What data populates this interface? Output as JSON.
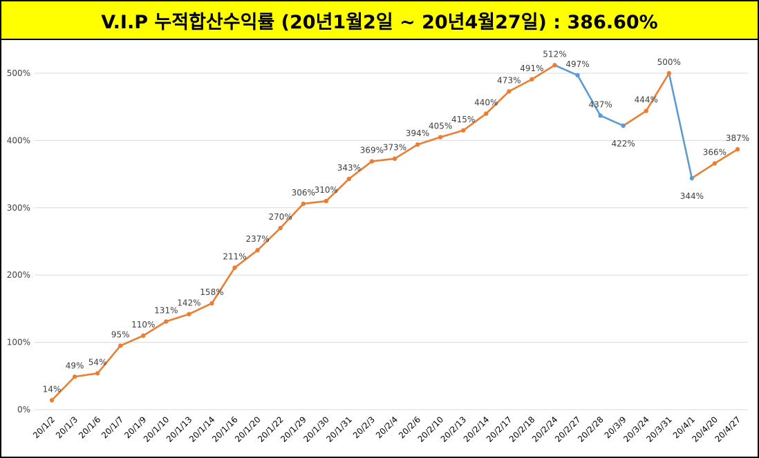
{
  "title": "V.I.P 누적합산수익률 (20년1월2일 ~ 20년4월27일) : 386.60%",
  "colors": {
    "title_background": "#ffff00",
    "line_up": "#ed7d31",
    "line_down": "#5b9bd5",
    "grid": "#d9d9d9"
  },
  "chart_data": {
    "type": "line",
    "title": "V.I.P 누적합산수익률 (20년1월2일 ~ 20년4월27일) : 386.60%",
    "xlabel": "",
    "ylabel": "",
    "ylim": [
      0,
      500
    ],
    "yticks": [
      0,
      100,
      200,
      300,
      400,
      500
    ],
    "ytick_labels": [
      "0%",
      "100%",
      "200%",
      "300%",
      "400%",
      "500%"
    ],
    "grid": true,
    "categories": [
      "20/1/2",
      "20/1/3",
      "20/1/6",
      "20/1/7",
      "20/1/9",
      "20/1/10",
      "20/1/13",
      "20/1/14",
      "20/1/16",
      "20/1/20",
      "20/1/22",
      "20/1/29",
      "20/1/30",
      "20/1/31",
      "20/2/3",
      "20/2/4",
      "20/2/6",
      "20/2/10",
      "20/2/13",
      "20/2/14",
      "20/2/17",
      "20/2/18",
      "20/2/24",
      "20/2/27",
      "20/2/28",
      "20/3/9",
      "20/3/24",
      "20/3/31",
      "20/4/1",
      "20/4/20",
      "20/4/27"
    ],
    "series": [
      {
        "name": "누적합산수익률",
        "values": [
          14,
          49,
          54,
          95,
          110,
          131,
          142,
          158,
          211,
          237,
          270,
          306,
          310,
          343,
          369,
          373,
          394,
          405,
          415,
          440,
          473,
          491,
          512,
          497,
          437,
          422,
          444,
          500,
          344,
          366,
          387
        ],
        "labels": [
          "14%",
          "49%",
          "54%",
          "95%",
          "110%",
          "131%",
          "142%",
          "158%",
          "211%",
          "237%",
          "270%",
          "306%",
          "310%",
          "343%",
          "369%",
          "373%",
          "394%",
          "405%",
          "415%",
          "440%",
          "473%",
          "491%",
          "512%",
          "497%",
          "437%",
          "422%",
          "444%",
          "500%",
          "344%",
          "366%",
          "387%"
        ]
      }
    ]
  }
}
